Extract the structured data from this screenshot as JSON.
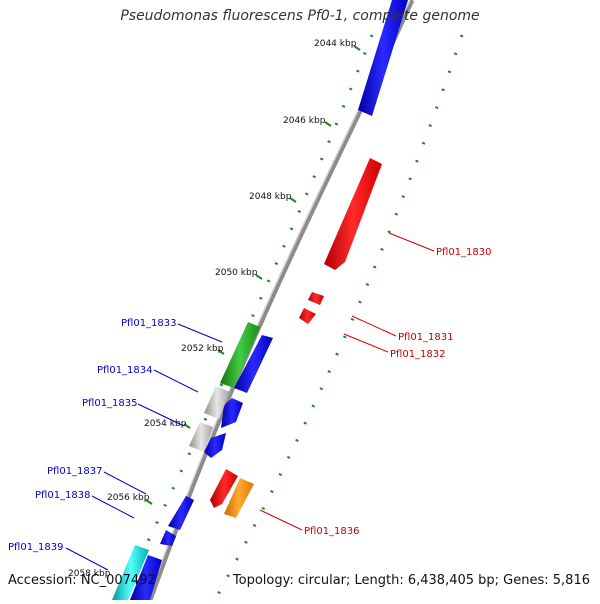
{
  "title": "Pseudomonas fluorescens Pf0-1, complete genome",
  "footer": {
    "accession": "Accession: NC_007492",
    "summary": "Topology: circular; Length: 6,438,405 bp; Genes: 5,816"
  },
  "ticks": [
    "2044 kbp",
    "2046 kbp",
    "2048 kbp",
    "2050 kbp",
    "2052 kbp",
    "2054 kbp",
    "2056 kbp",
    "2058 kbp"
  ],
  "genes": [
    {
      "id": "Pfl01_1830",
      "label": "Pfl01_1830",
      "color": "#ff0000",
      "label_color": "#cc0000"
    },
    {
      "id": "Pfl01_1831",
      "label": "Pfl01_1831",
      "color": "#ff0000",
      "label_color": "#cc0000"
    },
    {
      "id": "Pfl01_1832",
      "label": "Pfl01_1832",
      "color": "#ff0000",
      "label_color": "#cc0000"
    },
    {
      "id": "Pfl01_1833",
      "label": "Pfl01_1833",
      "color": "#22aa22",
      "label_color": "#0000cc"
    },
    {
      "id": "Pfl01_1834",
      "label": "Pfl01_1834",
      "color": "#b8b8b8",
      "label_color": "#0000cc"
    },
    {
      "id": "Pfl01_1835",
      "label": "Pfl01_1835",
      "color": "#b8b8b8",
      "label_color": "#0000cc"
    },
    {
      "id": "Pfl01_1836",
      "label": "Pfl01_1836",
      "color": "#ff8800",
      "label_color": "#cc0000"
    },
    {
      "id": "Pfl01_1837",
      "label": "Pfl01_1837",
      "color": "#0000ee",
      "label_color": "#0000cc"
    },
    {
      "id": "Pfl01_1838",
      "label": "Pfl01_1838",
      "color": "#0000ee",
      "label_color": "#0000cc"
    },
    {
      "id": "Pfl01_1839",
      "label": "Pfl01_1839",
      "color": "#00cccc",
      "label_color": "#0000cc"
    }
  ],
  "colors": {
    "backbone": "#8c8c8c",
    "dots": "#1a8a1a",
    "tick": "#1a8a1a",
    "forward_strand": "#0000ee",
    "reverse_strand": "#ff0000"
  }
}
